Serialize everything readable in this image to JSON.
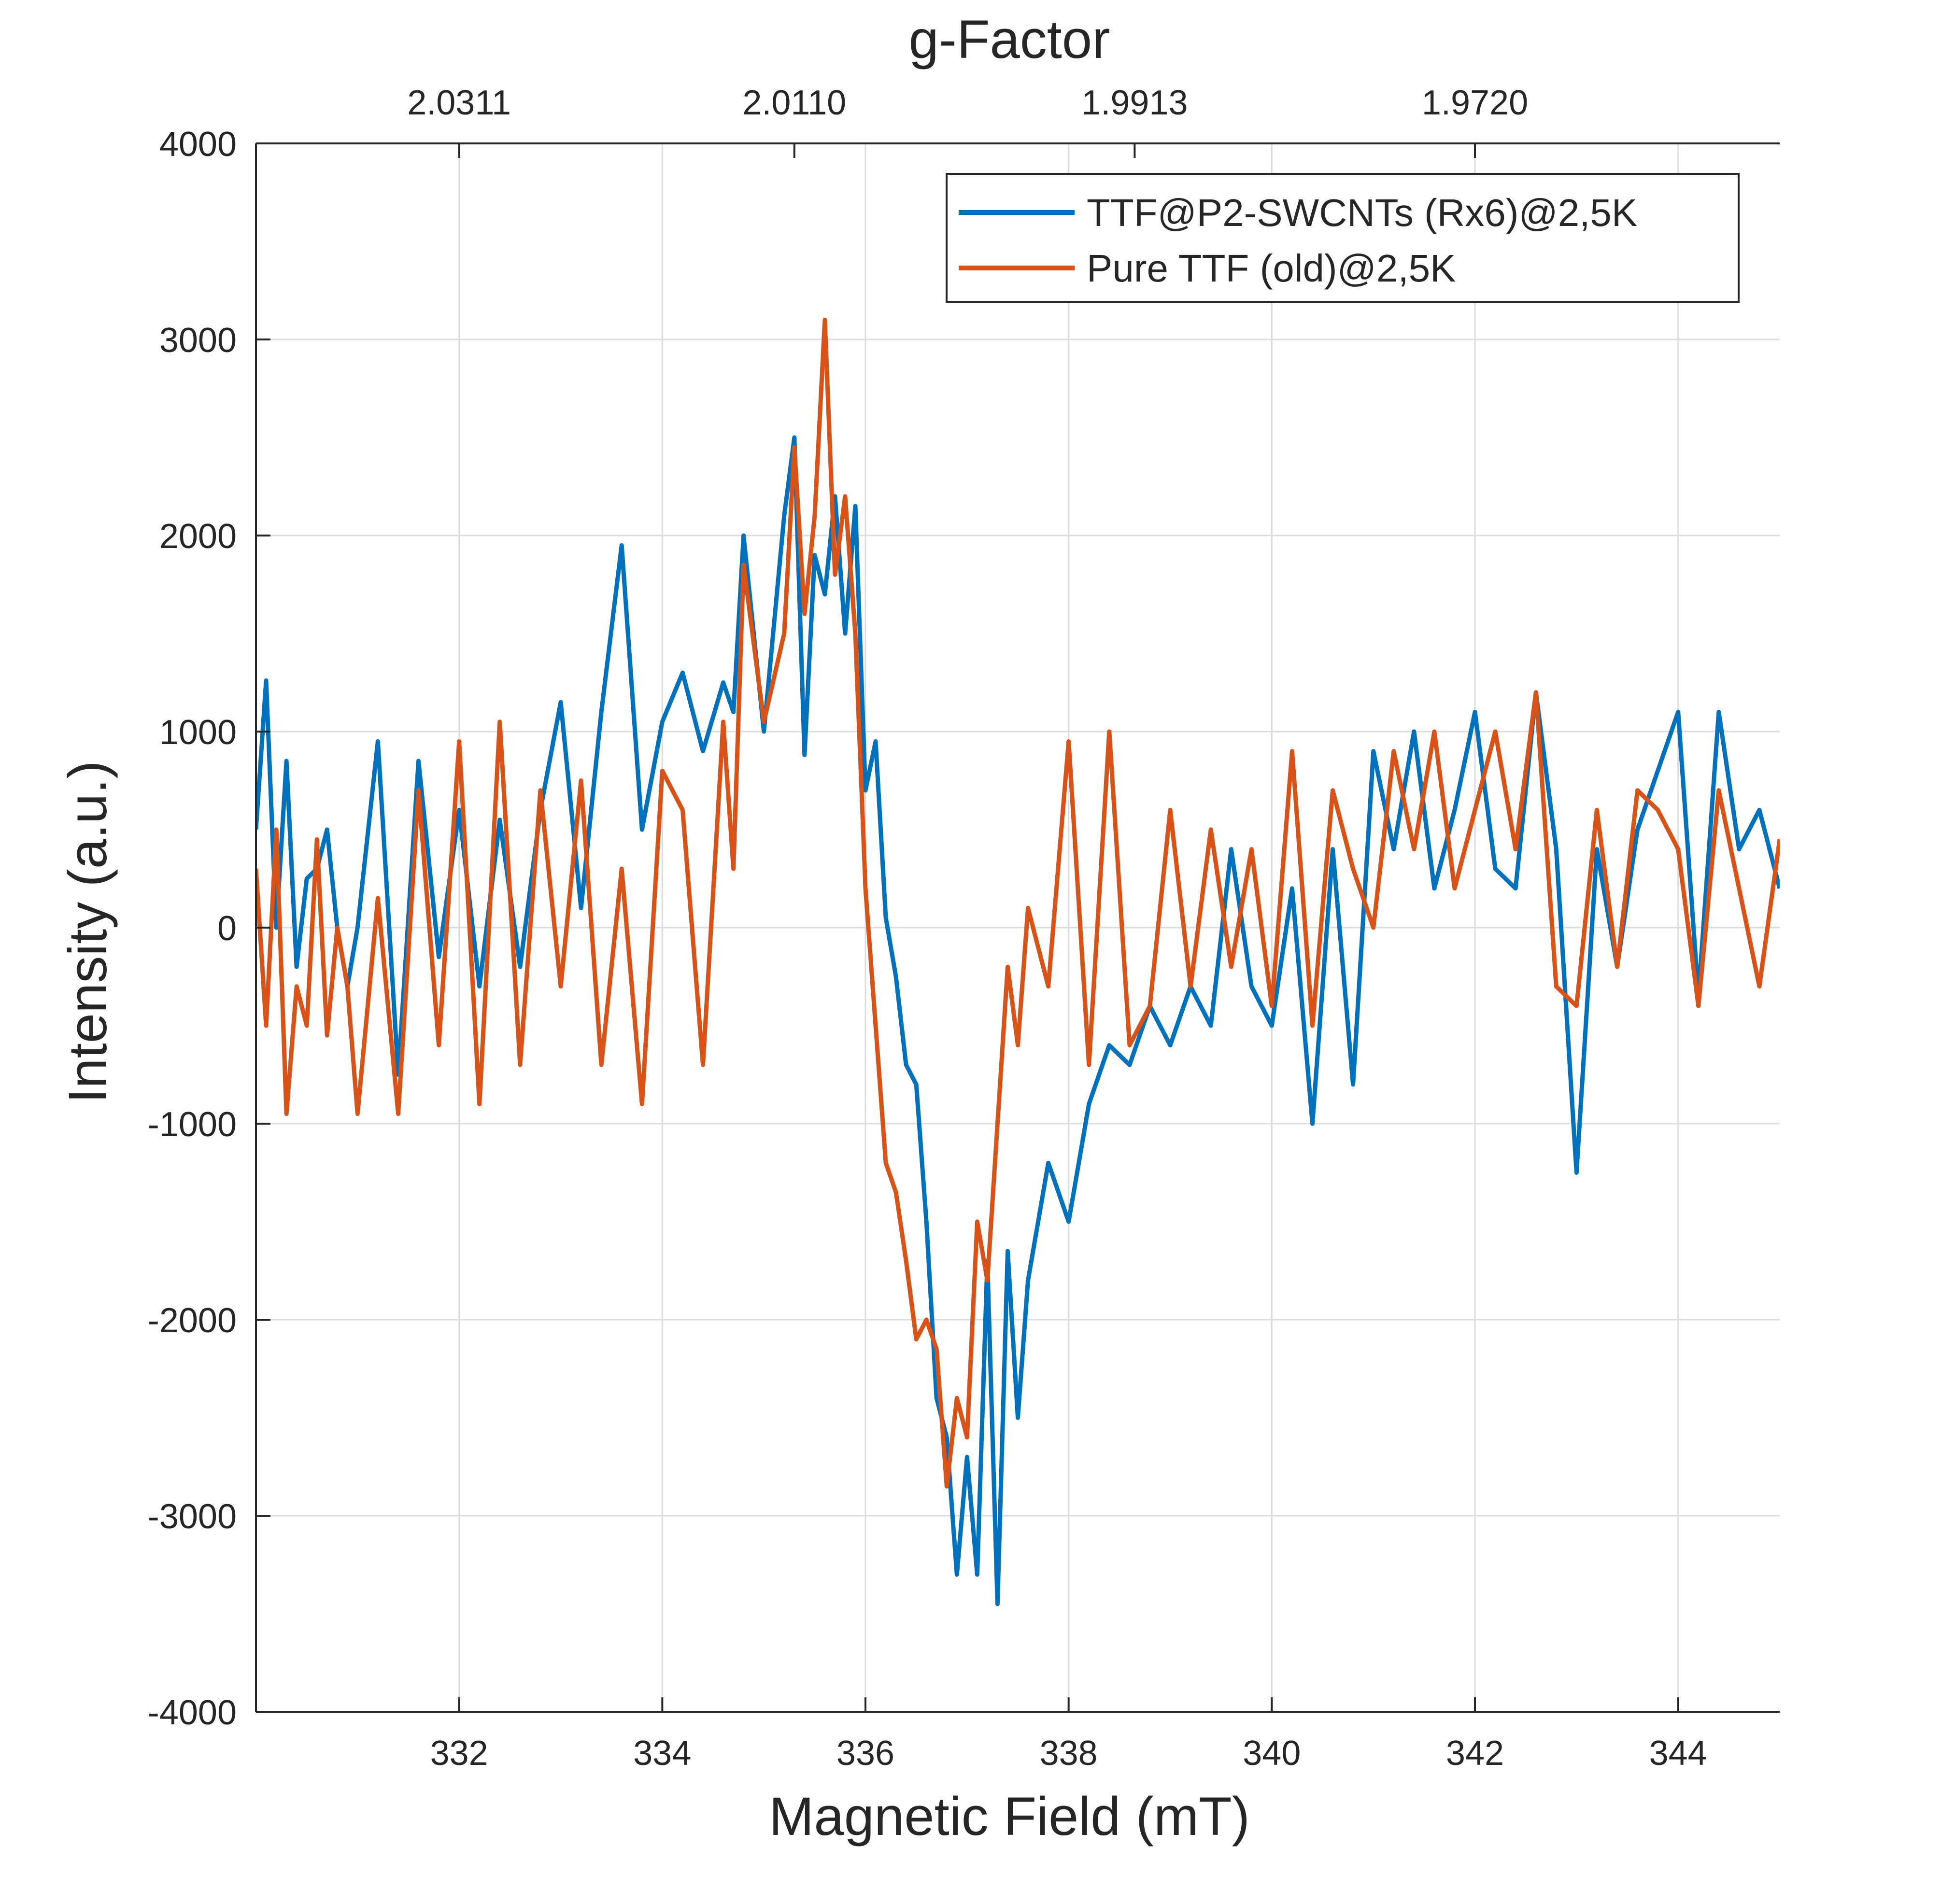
{
  "chart_data": {
    "type": "line",
    "title": "g-Factor",
    "xlabel": "Magnetic Field (mT)",
    "ylabel": "Intensity (a.u.)",
    "xlim": [
      330,
      345
    ],
    "ylim": [
      -4000,
      4000
    ],
    "grid": true,
    "legend_position": "top-right",
    "x_ticks": [
      332,
      334,
      336,
      338,
      340,
      342,
      344
    ],
    "x_tick_labels": [
      "332",
      "334",
      "336",
      "338",
      "340",
      "342",
      "344"
    ],
    "y_ticks": [
      -4000,
      -3000,
      -2000,
      -1000,
      0,
      1000,
      2000,
      3000,
      4000
    ],
    "y_tick_labels": [
      "-4000",
      "-3000",
      "-2000",
      "-1000",
      "0",
      "1000",
      "2000",
      "3000",
      "4000"
    ],
    "top_axis": {
      "label": "g-Factor",
      "tick_positions_mT": [
        332,
        335.3,
        338.65,
        342
      ],
      "tick_labels": [
        "2.0311",
        "2.0110",
        "1.9913",
        "1.9720"
      ]
    },
    "series": [
      {
        "name": "TTF@P2-SWCNTs (Rx6)@2,5K",
        "color": "#0072BD",
        "x": [
          330.0,
          330.1,
          330.2,
          330.3,
          330.4,
          330.5,
          330.6,
          330.7,
          330.8,
          330.9,
          331.0,
          331.2,
          331.4,
          331.6,
          331.8,
          332.0,
          332.2,
          332.4,
          332.6,
          332.8,
          333.0,
          333.2,
          333.4,
          333.6,
          333.8,
          334.0,
          334.2,
          334.4,
          334.6,
          334.7,
          334.8,
          335.0,
          335.2,
          335.3,
          335.4,
          335.5,
          335.6,
          335.7,
          335.8,
          335.9,
          336.0,
          336.1,
          336.2,
          336.3,
          336.4,
          336.5,
          336.6,
          336.7,
          336.8,
          336.9,
          337.0,
          337.1,
          337.2,
          337.3,
          337.4,
          337.5,
          337.6,
          337.8,
          338.0,
          338.2,
          338.4,
          338.6,
          338.8,
          339.0,
          339.2,
          339.4,
          339.6,
          339.8,
          340.0,
          340.2,
          340.4,
          340.6,
          340.8,
          341.0,
          341.2,
          341.4,
          341.6,
          341.8,
          342.0,
          342.2,
          342.4,
          342.6,
          342.8,
          343.0,
          343.2,
          343.4,
          343.6,
          343.8,
          344.0,
          344.2,
          344.4,
          344.6,
          344.8,
          345.0
        ],
        "values": [
          500,
          1260,
          0,
          850,
          -200,
          250,
          300,
          500,
          0,
          -300,
          0,
          950,
          -750,
          850,
          -150,
          600,
          -300,
          550,
          -200,
          600,
          1150,
          100,
          1100,
          1950,
          500,
          1050,
          1300,
          900,
          1250,
          1100,
          2000,
          1000,
          2100,
          2500,
          880,
          1900,
          1700,
          2200,
          1500,
          2150,
          700,
          950,
          50,
          -250,
          -700,
          -800,
          -1500,
          -2400,
          -2600,
          -3300,
          -2700,
          -3300,
          -1700,
          -3450,
          -1650,
          -2500,
          -1800,
          -1200,
          -1500,
          -900,
          -600,
          -700,
          -400,
          -600,
          -300,
          -500,
          400,
          -300,
          -500,
          200,
          -1000,
          400,
          -800,
          900,
          400,
          1000,
          200,
          600,
          1100,
          300,
          200,
          1200,
          400,
          -1250,
          400,
          -200,
          500,
          800,
          1100,
          -350,
          1100,
          400,
          600,
          200
        ]
      },
      {
        "name": "Pure TTF (old)@2,5K",
        "color": "#D95319",
        "x": [
          330.0,
          330.1,
          330.2,
          330.3,
          330.4,
          330.5,
          330.6,
          330.7,
          330.8,
          330.9,
          331.0,
          331.2,
          331.4,
          331.6,
          331.8,
          332.0,
          332.2,
          332.4,
          332.6,
          332.8,
          333.0,
          333.2,
          333.4,
          333.6,
          333.8,
          334.0,
          334.2,
          334.4,
          334.6,
          334.7,
          334.8,
          335.0,
          335.2,
          335.3,
          335.4,
          335.5,
          335.6,
          335.7,
          335.8,
          335.9,
          336.0,
          336.1,
          336.2,
          336.3,
          336.4,
          336.5,
          336.6,
          336.7,
          336.8,
          336.9,
          337.0,
          337.1,
          337.2,
          337.3,
          337.4,
          337.5,
          337.6,
          337.8,
          338.0,
          338.2,
          338.4,
          338.6,
          338.8,
          339.0,
          339.2,
          339.4,
          339.6,
          339.8,
          340.0,
          340.2,
          340.4,
          340.6,
          340.8,
          341.0,
          341.2,
          341.4,
          341.6,
          341.8,
          342.0,
          342.2,
          342.4,
          342.6,
          342.8,
          343.0,
          343.2,
          343.4,
          343.6,
          343.8,
          344.0,
          344.2,
          344.4,
          344.6,
          344.8,
          345.0
        ],
        "values": [
          300,
          -500,
          500,
          -950,
          -300,
          -500,
          450,
          -550,
          0,
          -300,
          -950,
          150,
          -950,
          700,
          -600,
          950,
          -900,
          1050,
          -700,
          700,
          -300,
          750,
          -700,
          300,
          -900,
          800,
          600,
          -700,
          1050,
          300,
          1850,
          1050,
          1500,
          2450,
          1600,
          2100,
          3100,
          1800,
          2200,
          1500,
          200,
          -500,
          -1200,
          -1350,
          -1700,
          -2100,
          -2000,
          -2150,
          -2850,
          -2400,
          -2600,
          -1500,
          -1800,
          -1000,
          -200,
          -600,
          100,
          -300,
          950,
          -700,
          1000,
          -600,
          -400,
          600,
          -300,
          500,
          -200,
          400,
          -400,
          900,
          -500,
          700,
          300,
          0,
          900,
          400,
          1000,
          200,
          600,
          1000,
          400,
          1200,
          -300,
          -400,
          600,
          -200,
          700,
          600,
          400,
          -400,
          700,
          200,
          -300,
          450
        ]
      }
    ]
  }
}
